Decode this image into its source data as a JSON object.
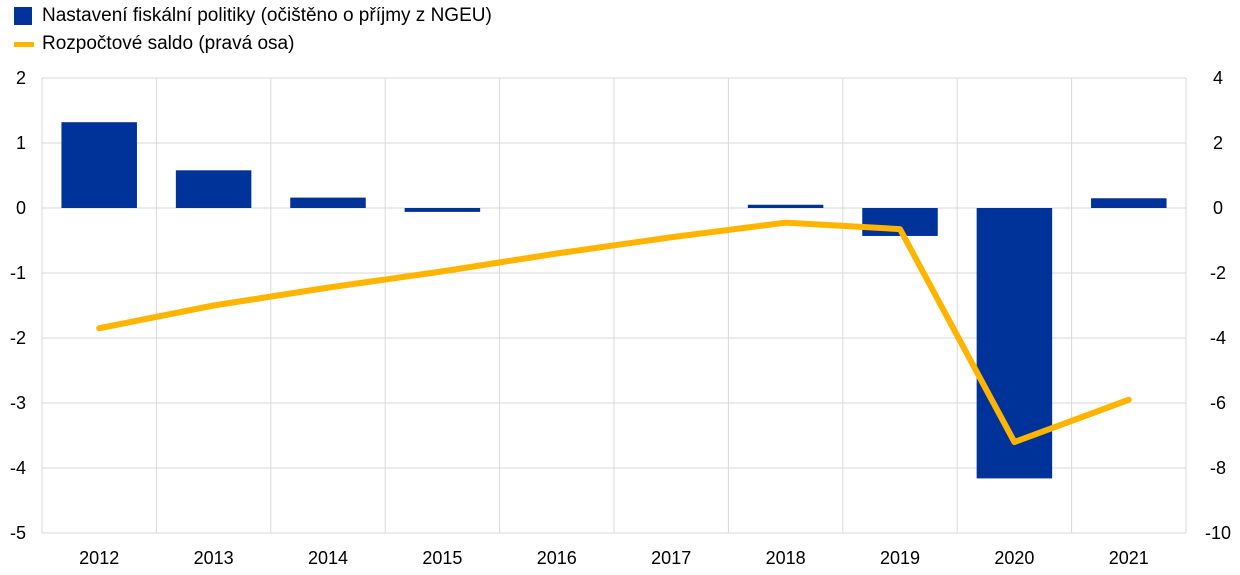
{
  "legend": {
    "bar_label": "Nastavení fiskální politiky (očištěno o příjmy z NGEU)",
    "line_label": "Rozpočtové saldo (pravá osa)"
  },
  "chart_data": {
    "type": "bar",
    "categories": [
      "2012",
      "2013",
      "2014",
      "2015",
      "2016",
      "2017",
      "2018",
      "2019",
      "2020",
      "2021"
    ],
    "series": [
      {
        "name": "Nastavení fiskální politiky (očištěno o příjmy z NGEU)",
        "type": "bar",
        "axis": "left",
        "color": "#003399",
        "values": [
          1.32,
          0.58,
          0.16,
          -0.06,
          0.0,
          0.0,
          0.05,
          -0.43,
          -4.16,
          0.15
        ]
      },
      {
        "name": "Rozpočtové saldo (pravá osa)",
        "type": "line",
        "axis": "right",
        "color": "#FFB400",
        "values": [
          -3.7,
          -3.0,
          -2.45,
          -1.95,
          -1.4,
          -0.9,
          -0.45,
          -0.65,
          -7.2,
          -5.9
        ]
      }
    ],
    "y_left": {
      "min": -5,
      "max": 2,
      "ticks": [
        "2",
        "1",
        "0",
        "-1",
        "-2",
        "-3",
        "-4",
        "-5"
      ]
    },
    "y_right": {
      "min": -10,
      "max": 4,
      "ticks": [
        "4",
        "2",
        "0",
        "-2",
        "-4",
        "-6",
        "-8",
        "-10"
      ]
    },
    "grid": true,
    "legend_position": "top-left"
  }
}
